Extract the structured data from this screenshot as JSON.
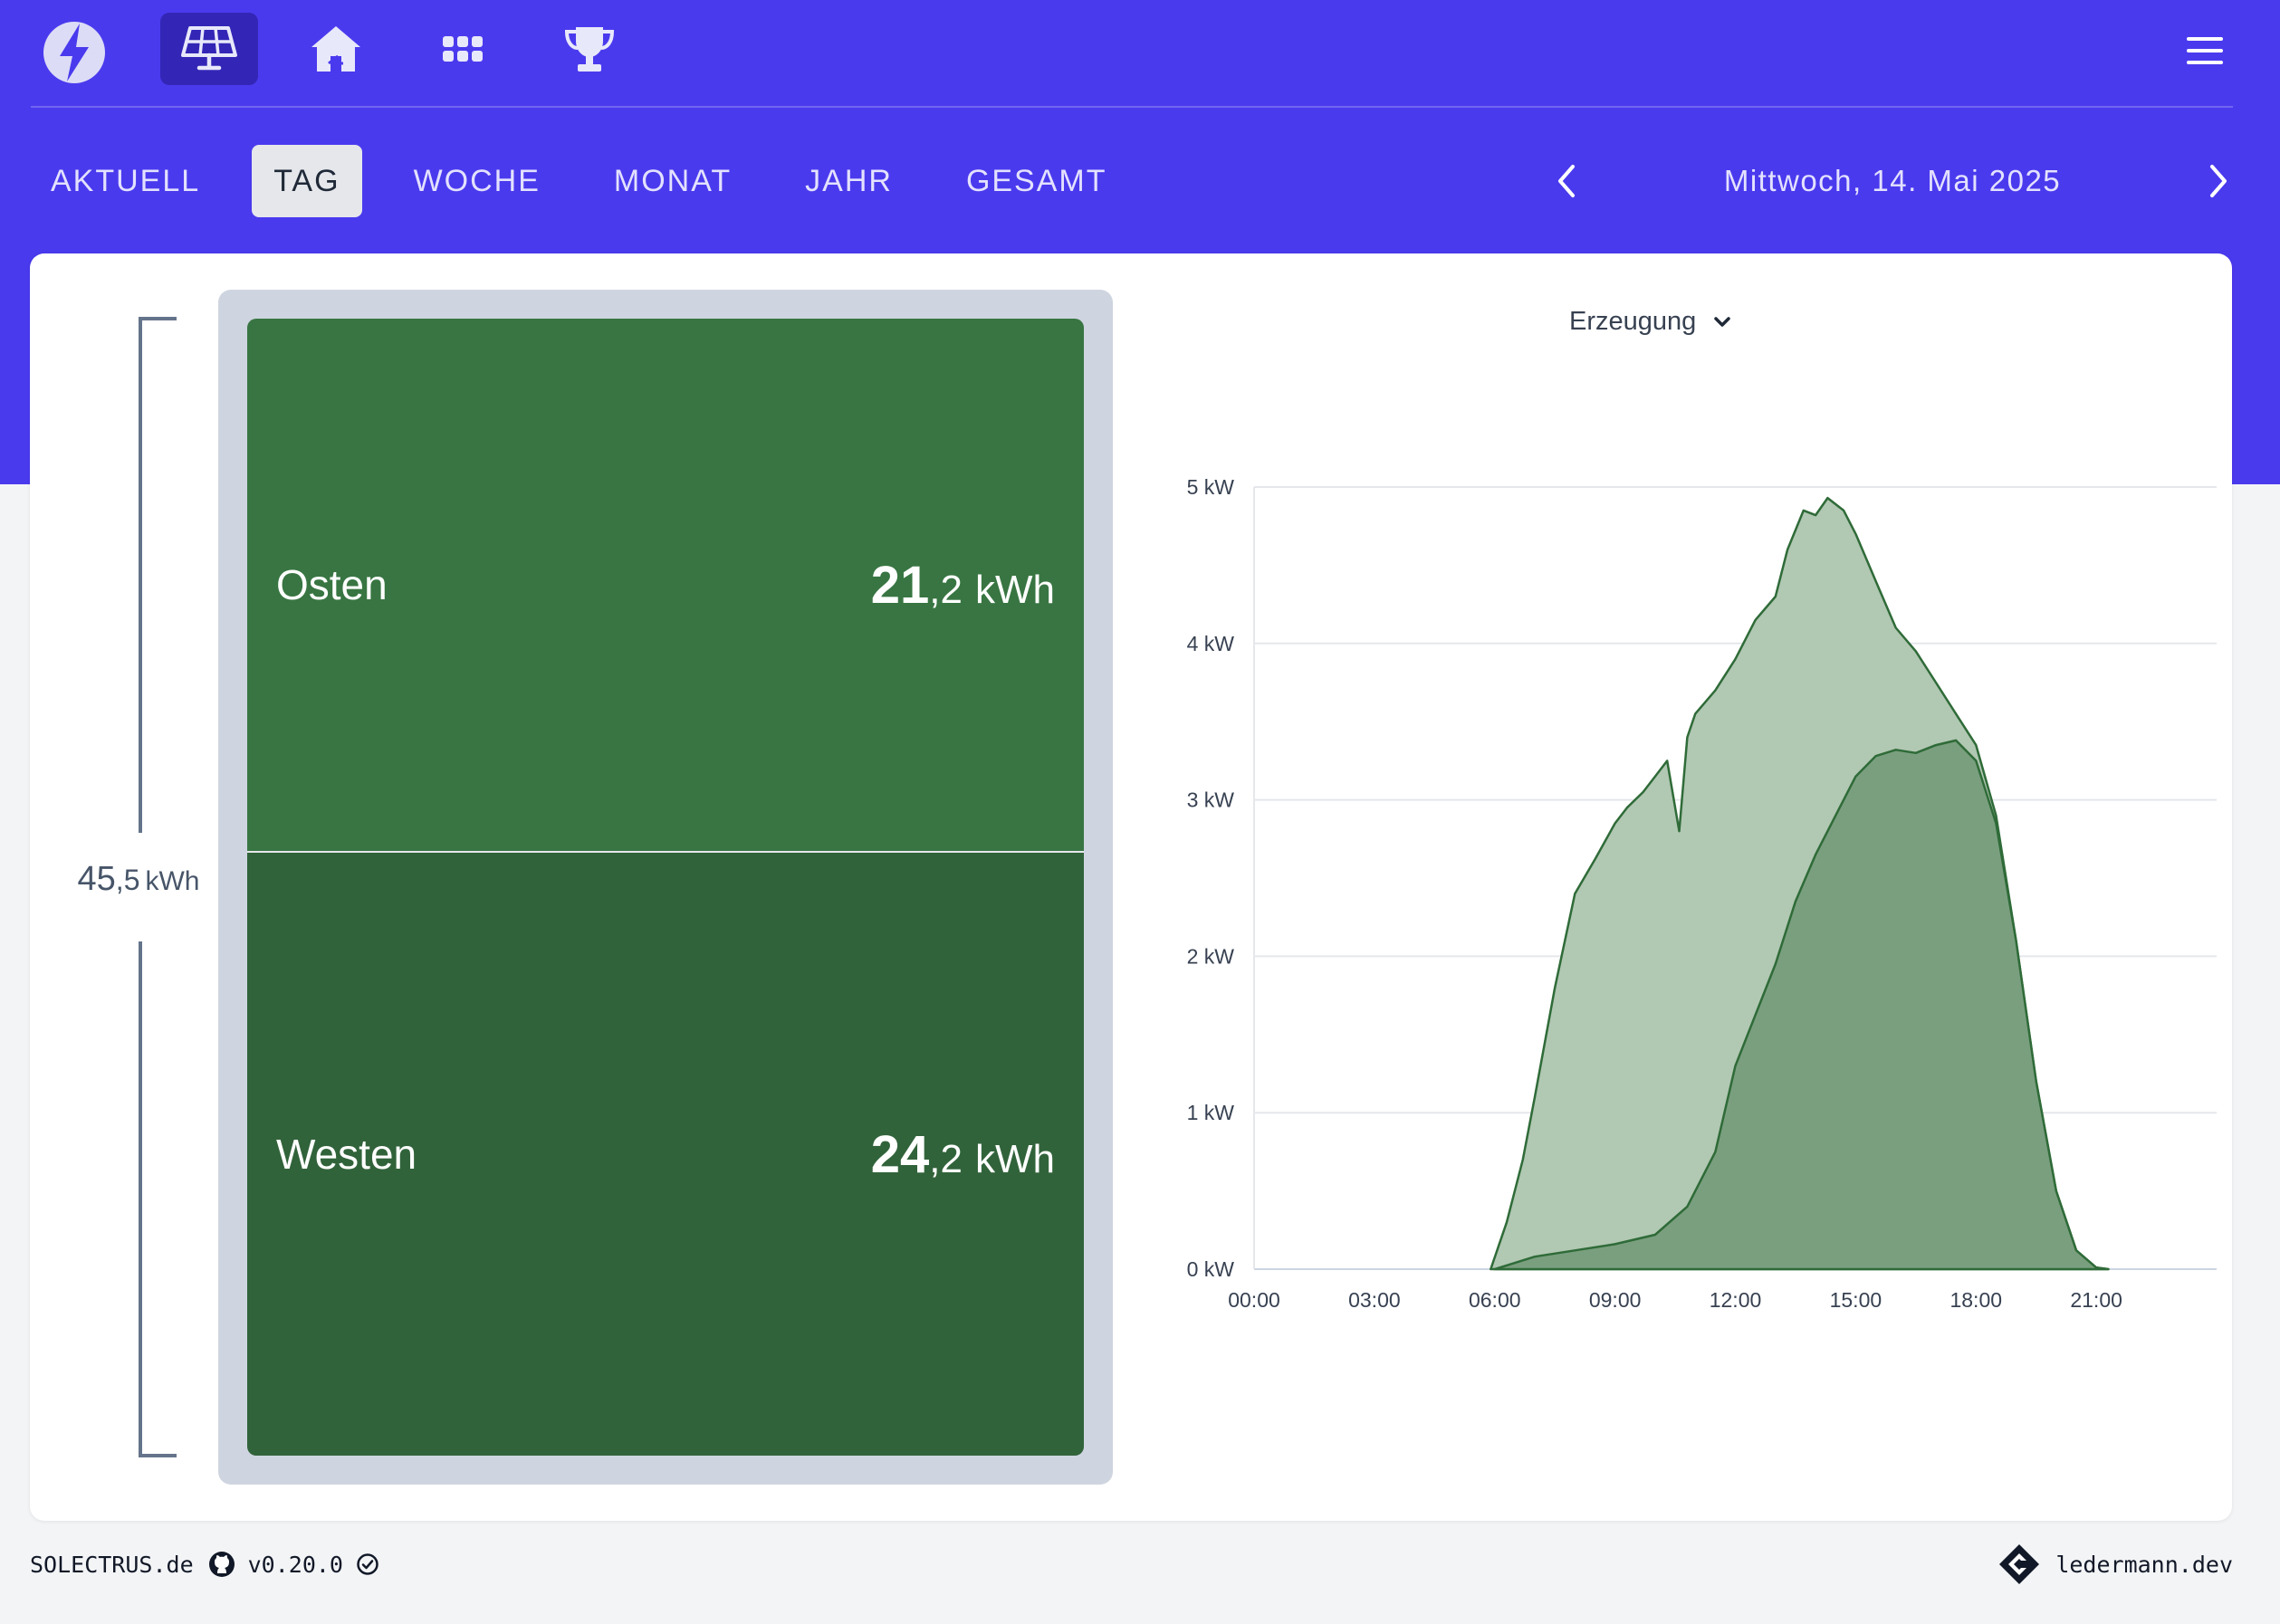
{
  "nav": {
    "icons": [
      "bolt-logo-icon",
      "solar-panel-icon",
      "house-icon",
      "grid-icon",
      "trophy-icon",
      "menu-icon"
    ],
    "active_icon": "solar-panel-icon"
  },
  "tabs": [
    {
      "label": "AKTUELL",
      "active": false
    },
    {
      "label": "TAG",
      "active": true
    },
    {
      "label": "WOCHE",
      "active": false
    },
    {
      "label": "MONAT",
      "active": false
    },
    {
      "label": "JAHR",
      "active": false
    },
    {
      "label": "GESAMT",
      "active": false
    }
  ],
  "date_nav": {
    "label": "Mittwoch, 14. Mai 2025",
    "prev_icon": "chevron-left-icon",
    "next_icon": "chevron-right-icon"
  },
  "summary": {
    "total": {
      "int": "45",
      "frac": ",5",
      "unit": "kWh"
    },
    "segments": [
      {
        "name": "Osten",
        "int": "21",
        "frac": ",2",
        "unit": "kWh"
      },
      {
        "name": "Westen",
        "int": "24",
        "frac": ",2",
        "unit": "kWh"
      }
    ]
  },
  "chart": {
    "select_label": "Erzeugung"
  },
  "chart_data": {
    "type": "area",
    "x_tick_labels": [
      "00:00",
      "03:00",
      "06:00",
      "09:00",
      "12:00",
      "15:00",
      "18:00",
      "21:00"
    ],
    "y_tick_labels": [
      "0 kW",
      "1 kW",
      "2 kW",
      "3 kW",
      "4 kW",
      "5 kW"
    ],
    "ylim": [
      0,
      5
    ],
    "xlim_hours": [
      0,
      24
    ],
    "stacked": true,
    "grid": "horizontal",
    "series": [
      {
        "color": "#7a9f7f",
        "x_hours": [
          6.0,
          7.0,
          8.0,
          9.0,
          10.0,
          10.8,
          11.5,
          12.0,
          13.0,
          13.5,
          14.0,
          14.5,
          15.0,
          15.5,
          16.0,
          16.5,
          17.0,
          17.5,
          18.0,
          18.5,
          19.0,
          19.5,
          20.0,
          20.5,
          21.0,
          21.3
        ],
        "kw": [
          0.0,
          0.08,
          0.12,
          0.16,
          0.22,
          0.4,
          0.75,
          1.3,
          1.95,
          2.35,
          2.65,
          2.9,
          3.15,
          3.28,
          3.32,
          3.3,
          3.35,
          3.38,
          3.25,
          2.85,
          2.1,
          1.2,
          0.5,
          0.12,
          0.01,
          0.0
        ]
      },
      {
        "color": "#b1c8b3",
        "x_hours": [
          5.9,
          6.3,
          6.7,
          7.0,
          7.5,
          8.0,
          8.5,
          9.0,
          9.3,
          9.7,
          10.0,
          10.3,
          10.6,
          10.8,
          11.0,
          11.5,
          12.0,
          12.5,
          13.0,
          13.3,
          13.7,
          14.0,
          14.3,
          14.7,
          15.0,
          15.5,
          16.0,
          16.5,
          17.0,
          17.5,
          18.0,
          18.5,
          19.0,
          19.5,
          20.0,
          20.5,
          21.0,
          21.3
        ],
        "kw": [
          0.0,
          0.3,
          0.7,
          1.1,
          1.8,
          2.4,
          2.62,
          2.85,
          2.95,
          3.05,
          3.15,
          3.25,
          2.8,
          3.4,
          3.55,
          3.7,
          3.9,
          4.15,
          4.3,
          4.6,
          4.85,
          4.82,
          4.93,
          4.85,
          4.7,
          4.4,
          4.1,
          3.95,
          3.75,
          3.55,
          3.35,
          2.9,
          2.1,
          1.2,
          0.5,
          0.12,
          0.01,
          0.0
        ]
      }
    ]
  },
  "footer": {
    "brand": "SOLECTRUS.de",
    "version": "v0.20.0",
    "author": "ledermann.dev",
    "icons": [
      "github-icon",
      "check-circle-icon",
      "ledermann-logo-icon"
    ]
  }
}
